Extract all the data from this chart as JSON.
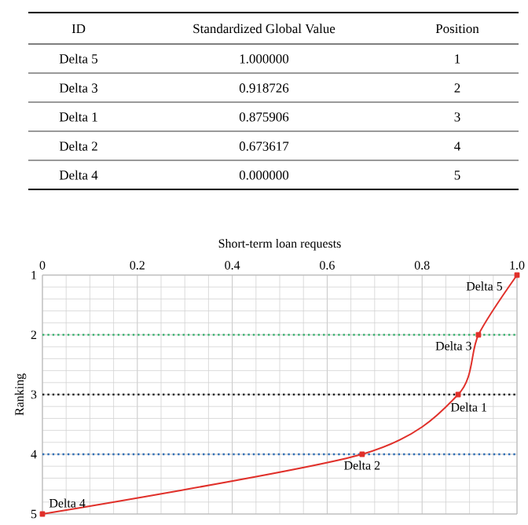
{
  "chart_data": {
    "type": "line",
    "xlabel": "Short-term loan requests",
    "ylabel": "Ranking",
    "x": [
      1.0,
      0.918726,
      0.875906,
      0.673617,
      0.0
    ],
    "series": [
      {
        "color": "#e0302a",
        "values": [
          1,
          2,
          3,
          4,
          5
        ]
      }
    ],
    "marker": "square",
    "line_style": "solid",
    "xlim": [
      0,
      1
    ],
    "xticks": [
      0,
      0.2,
      0.4,
      0.6,
      0.8,
      {
        "value": 1,
        "label": "1.0"
      }
    ],
    "ylim": [
      5,
      1
    ],
    "yticks": [
      1,
      2,
      3,
      4,
      5
    ],
    "grid": true,
    "ref_lines": [
      {
        "axis": "y",
        "value": 2,
        "color": "#3cb371",
        "line_style": "dotted"
      },
      {
        "axis": "y",
        "value": 3,
        "color": "#222222",
        "line_style": "dotted"
      },
      {
        "axis": "y",
        "value": 4,
        "color": "#2f6eb5",
        "line_style": "dotted"
      }
    ],
    "annotations": [
      "ID",
      "Standardized Global Value",
      "Position",
      "Delta 5",
      "1.000000",
      "1",
      "Delta 3",
      "0.918726",
      "2",
      "Delta 1",
      "0.875906",
      "3",
      "Delta 2",
      "0.673617",
      "4",
      "Delta 4",
      "0.000000",
      "5",
      {
        "text": "Delta 5",
        "x": 1.0,
        "y": 1
      },
      {
        "text": "Delta 3",
        "x": 0.918726,
        "y": 2
      },
      {
        "text": "Delta 1",
        "x": 0.875906,
        "y": 3
      },
      {
        "text": "Delta 2",
        "x": 0.673617,
        "y": 4
      },
      {
        "text": "Delta 4",
        "x": 0.0,
        "y": 5
      }
    ]
  }
}
